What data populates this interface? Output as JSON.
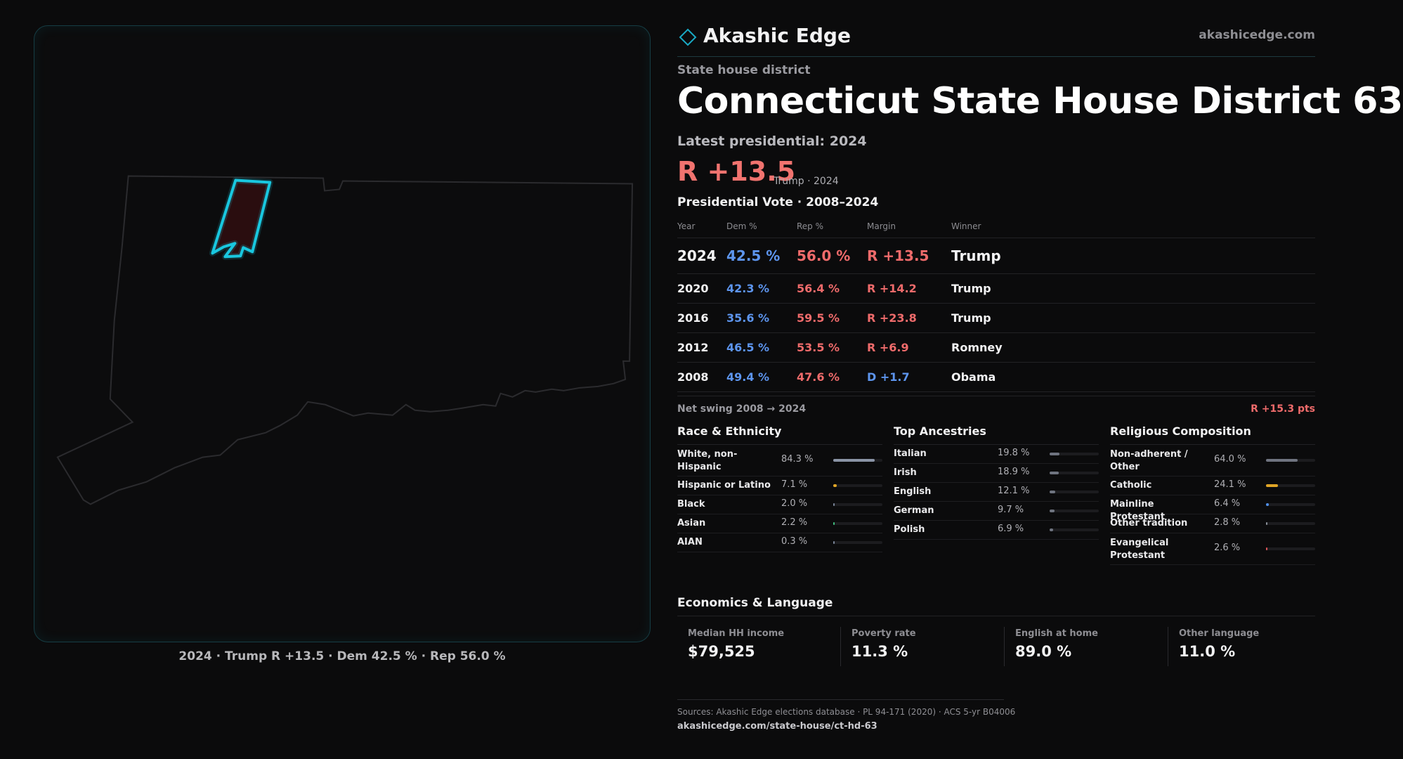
{
  "brand": {
    "name": "Akashic Edge",
    "url": "akashicedge.com"
  },
  "district": {
    "kicker": "State house district",
    "title": "Connecticut State House District 63",
    "latest_label": "Latest presidential: 2024",
    "margin": "R +13.5",
    "margin_sub": "Trump · 2024"
  },
  "map": {
    "caption": "2024 · Trump R +13.5 · Dem 42.5 % · Rep 56.0 %"
  },
  "vote_table": {
    "title": "Presidential Vote · 2008–2024",
    "headers": {
      "year": "Year",
      "dem": "Dem %",
      "rep": "Rep %",
      "margin": "Margin",
      "winner": "Winner"
    },
    "rows": [
      {
        "year": "2024",
        "dem": "42.5 %",
        "rep": "56.0 %",
        "margin": "R +13.5",
        "winner": "Trump",
        "margin_color": "#ef6b6b"
      },
      {
        "year": "2020",
        "dem": "42.3 %",
        "rep": "56.4 %",
        "margin": "R +14.2",
        "winner": "Trump",
        "margin_color": "#ef6b6b"
      },
      {
        "year": "2016",
        "dem": "35.6 %",
        "rep": "59.5 %",
        "margin": "R +23.8",
        "winner": "Trump",
        "margin_color": "#ef6b6b"
      },
      {
        "year": "2012",
        "dem": "46.5 %",
        "rep": "53.5 %",
        "margin": "R +6.9",
        "winner": "Romney",
        "margin_color": "#ef6b6b"
      },
      {
        "year": "2008",
        "dem": "49.4 %",
        "rep": "47.6 %",
        "margin": "D +1.7",
        "winner": "Obama",
        "margin_color": "#5d95ee"
      }
    ]
  },
  "swing": {
    "label": "Net swing 2008 → 2024",
    "value": "R +15.3 pts"
  },
  "race": {
    "title": "Race & Ethnicity",
    "items": [
      {
        "label": "White, non-Hispanic",
        "pct": "84.3 %",
        "value": 0.843,
        "color": "#8a94a6"
      },
      {
        "label": "Hispanic or Latino",
        "pct": "7.1 %",
        "value": 0.071,
        "color": "#e0a526"
      },
      {
        "label": "Black",
        "pct": "2.0 %",
        "value": 0.02,
        "color": "#7a8699"
      },
      {
        "label": "Asian",
        "pct": "2.2 %",
        "value": 0.022,
        "color": "#3fbf7f"
      },
      {
        "label": "AIAN",
        "pct": "0.3 %",
        "value": 0.003,
        "color": "#7a8699"
      }
    ]
  },
  "ancestry": {
    "title": "Top Ancestries",
    "items": [
      {
        "label": "Italian",
        "pct": "19.8 %",
        "value": 0.198,
        "color": "#6f7480"
      },
      {
        "label": "Irish",
        "pct": "18.9 %",
        "value": 0.189,
        "color": "#6f7480"
      },
      {
        "label": "English",
        "pct": "12.1 %",
        "value": 0.121,
        "color": "#6f7480"
      },
      {
        "label": "German",
        "pct": "9.7 %",
        "value": 0.097,
        "color": "#6f7480"
      },
      {
        "label": "Polish",
        "pct": "6.9 %",
        "value": 0.069,
        "color": "#6f7480"
      }
    ]
  },
  "religion": {
    "title": "Religious Composition",
    "items": [
      {
        "label": "Non-adherent / Other",
        "pct": "64.0 %",
        "value": 0.64,
        "color": "#6f7480"
      },
      {
        "label": "Catholic",
        "pct": "24.1 %",
        "value": 0.241,
        "color": "#e0a526"
      },
      {
        "label": "Mainline Protestant",
        "pct": "6.4 %",
        "value": 0.064,
        "color": "#4f8fe8"
      },
      {
        "label": "Other tradition",
        "pct": "2.8 %",
        "value": 0.028,
        "color": "#8a8f99"
      },
      {
        "label": "Evangelical Protestant",
        "pct": "2.6 %",
        "value": 0.026,
        "color": "#e0565a"
      }
    ]
  },
  "economics": {
    "title": "Economics & Language",
    "items": [
      {
        "label": "Median HH income",
        "value": "$79,525"
      },
      {
        "label": "Poverty rate",
        "value": "11.3 %"
      },
      {
        "label": "English at home",
        "value": "89.0 %"
      },
      {
        "label": "Other language",
        "value": "11.0 %"
      }
    ]
  },
  "sources": {
    "text": "Sources: Akashic Edge elections database · PL 94-171 (2020) · ACS 5-yr B04006",
    "url": "akashicedge.com/state-house/ct-hd-63"
  },
  "colors": {
    "accent": "#19c7e0",
    "dem": "#5d95ee",
    "rep": "#ef6b6b"
  }
}
